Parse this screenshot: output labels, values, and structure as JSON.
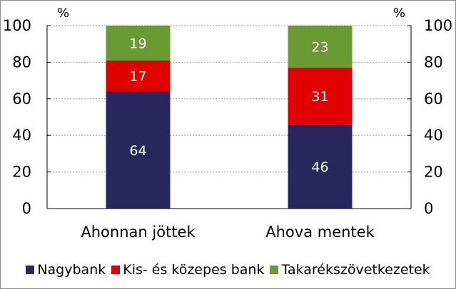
{
  "chart_data": {
    "type": "bar",
    "stacked": true,
    "categories": [
      "Ahonnan jöttek",
      "Ahova mentek"
    ],
    "series": [
      {
        "name": "Nagybank",
        "values": [
          64,
          46
        ],
        "color": "#28285f"
      },
      {
        "name": "Kis- és közepes bank",
        "values": [
          17,
          31
        ],
        "color": "#e00000"
      },
      {
        "name": "Takarékszövetkezetek",
        "values": [
          19,
          23
        ],
        "color": "#6a9a32"
      }
    ],
    "y_unit_left": "%",
    "y_unit_right": "%",
    "ylim": [
      0,
      100
    ],
    "yticks": [
      0,
      20,
      40,
      60,
      80,
      100
    ],
    "secondary_y_axis": true,
    "grid": "horizontal dashed",
    "legend_position": "bottom"
  }
}
